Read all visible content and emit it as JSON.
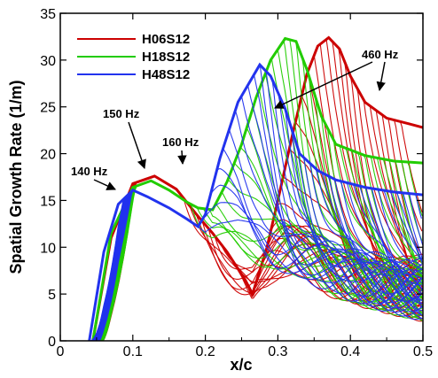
{
  "chart_data": {
    "type": "line",
    "title": "",
    "xlabel": "x/c",
    "ylabel": "Spatial Growth Rate (1/m)",
    "xlim": [
      0,
      0.5
    ],
    "ylim": [
      0,
      35
    ],
    "xticks": [
      0,
      0.1,
      0.2,
      0.3,
      0.4,
      0.5
    ],
    "xtick_labels": [
      "0",
      "0.1",
      "0.2",
      "0.3",
      "0.4",
      "0.5"
    ],
    "yticks": [
      0,
      5,
      10,
      15,
      20,
      25,
      30,
      35
    ],
    "ytick_labels": [
      "0",
      "5",
      "10",
      "15",
      "20",
      "25",
      "30",
      "35"
    ],
    "grid": false,
    "legend_position": "top-left",
    "series": [
      {
        "name": "H06S12",
        "color": "#cc0000",
        "envelope": [
          [
            0.045,
            0
          ],
          [
            0.07,
            11
          ],
          [
            0.1,
            16.8
          ],
          [
            0.13,
            17.6
          ],
          [
            0.16,
            16.2
          ],
          [
            0.19,
            13.3
          ],
          [
            0.21,
            11.5
          ],
          [
            0.23,
            9.5
          ],
          [
            0.255,
            6.5
          ],
          [
            0.265,
            5
          ],
          [
            0.285,
            10
          ],
          [
            0.3,
            15
          ],
          [
            0.32,
            22
          ],
          [
            0.34,
            28.5
          ],
          [
            0.355,
            31.5
          ],
          [
            0.37,
            32.4
          ],
          [
            0.385,
            31.2
          ],
          [
            0.4,
            28.3
          ],
          [
            0.42,
            25.5
          ],
          [
            0.45,
            23.8
          ],
          [
            0.48,
            23.2
          ],
          [
            0.5,
            22.8
          ]
        ]
      },
      {
        "name": "H18S12",
        "color": "#22cc00",
        "envelope": [
          [
            0.045,
            0
          ],
          [
            0.07,
            11.5
          ],
          [
            0.1,
            16.4
          ],
          [
            0.125,
            17.1
          ],
          [
            0.15,
            16.1
          ],
          [
            0.175,
            14.8
          ],
          [
            0.19,
            14.2
          ],
          [
            0.21,
            14
          ],
          [
            0.23,
            17
          ],
          [
            0.25,
            21
          ],
          [
            0.27,
            26
          ],
          [
            0.29,
            30
          ],
          [
            0.31,
            32.3
          ],
          [
            0.325,
            32
          ],
          [
            0.34,
            29
          ],
          [
            0.36,
            24
          ],
          [
            0.38,
            21
          ],
          [
            0.42,
            19.8
          ],
          [
            0.46,
            19.2
          ],
          [
            0.5,
            19
          ]
        ]
      },
      {
        "name": "H48S12",
        "color": "#2233ee",
        "envelope": [
          [
            0.04,
            0
          ],
          [
            0.06,
            9.5
          ],
          [
            0.08,
            14.6
          ],
          [
            0.1,
            16.1
          ],
          [
            0.12,
            15.4
          ],
          [
            0.15,
            14.2
          ],
          [
            0.175,
            13
          ],
          [
            0.19,
            12.2
          ],
          [
            0.2,
            13.5
          ],
          [
            0.22,
            19.5
          ],
          [
            0.245,
            25.5
          ],
          [
            0.275,
            29.5
          ],
          [
            0.29,
            28.3
          ],
          [
            0.31,
            24.8
          ],
          [
            0.33,
            20
          ],
          [
            0.355,
            18.2
          ],
          [
            0.38,
            17.2
          ],
          [
            0.42,
            16.4
          ],
          [
            0.46,
            15.9
          ],
          [
            0.5,
            15.6
          ]
        ]
      }
    ],
    "annotations": [
      {
        "text": "140 Hz",
        "x": 0.085,
        "y": 16
      },
      {
        "text": "150 Hz",
        "x": 0.122,
        "y": 17.5
      },
      {
        "text": "160 Hz",
        "x": 0.17,
        "y": 17.5
      },
      {
        "text": "460 Hz",
        "x": 0.39,
        "y": 27
      }
    ]
  }
}
